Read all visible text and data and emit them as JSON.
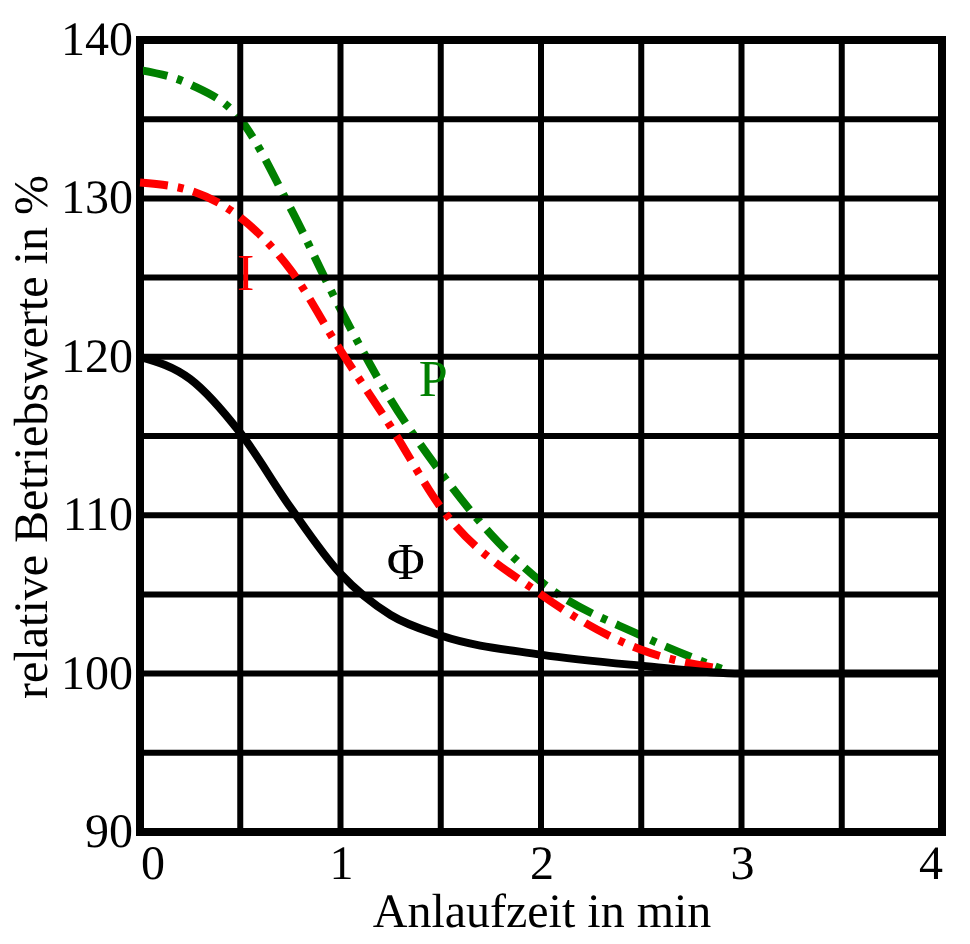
{
  "chart_data": {
    "type": "line",
    "xlabel": "Anlaufzeit in min",
    "ylabel": "relative Betriebswerte in %",
    "xlim": [
      0,
      4
    ],
    "ylim": [
      90,
      140
    ],
    "xticks": [
      0,
      {
        "value": 0.5,
        "label": null
      },
      1,
      {
        "value": 1.5,
        "label": null
      },
      2,
      {
        "value": 2.5,
        "label": null
      },
      3,
      {
        "value": 3.5,
        "label": null
      },
      4
    ],
    "yticks": [
      90,
      {
        "value": 95,
        "label": null
      },
      100,
      {
        "value": 105,
        "label": null
      },
      110,
      {
        "value": 115,
        "label": null
      },
      120,
      {
        "value": 125,
        "label": null
      },
      130,
      {
        "value": 135,
        "label": null
      },
      140
    ],
    "grid": true,
    "series": [
      {
        "name": "P",
        "color": "#008000",
        "line_style": "dashed",
        "x": [
          0,
          0.25,
          0.5,
          0.75,
          1.0,
          1.25,
          1.5,
          1.75,
          2.0,
          2.5,
          2.9
        ],
        "values": [
          138.1,
          137.2,
          135,
          129.4,
          123,
          117.3,
          112.7,
          108.8,
          105.8,
          102.4,
          100.3
        ]
      },
      {
        "name": "I",
        "color": "#ff0000",
        "line_style": "dashed",
        "x": [
          0,
          0.25,
          0.5,
          0.75,
          1.0,
          1.25,
          1.5,
          2.0,
          2.5,
          2.9
        ],
        "values": [
          131,
          130.5,
          128.8,
          125.5,
          120.4,
          115.6,
          110.5,
          105,
          101.5,
          100.3
        ]
      },
      {
        "name": "Φ",
        "color": "#000000",
        "line_style": "solid",
        "x": [
          0,
          0.25,
          0.5,
          0.75,
          1.0,
          1.25,
          1.5,
          2.0,
          2.5,
          3.0,
          4.0
        ],
        "values": [
          120,
          118.6,
          115.2,
          110.5,
          106.3,
          103.7,
          102.4,
          101.2,
          100.5,
          100,
          100
        ]
      }
    ]
  }
}
